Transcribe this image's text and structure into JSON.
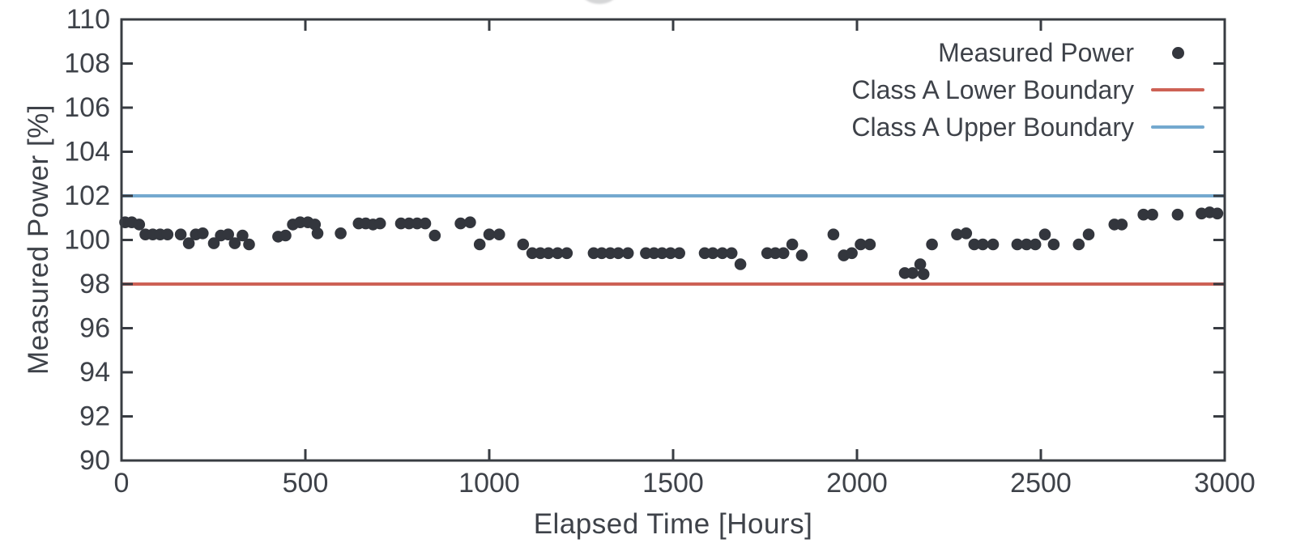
{
  "page": {
    "background": "#ffffff"
  },
  "decor": {
    "top_partial_circle": true,
    "top_partial_circle_color": "#b4b5b8"
  },
  "chart_data": {
    "type": "scatter",
    "title": "",
    "xlabel": "Elapsed Time [Hours]",
    "ylabel": "Measured Power [%]",
    "xlim": [
      0,
      3000
    ],
    "ylim": [
      90,
      110
    ],
    "x_ticks": [
      "0",
      "500",
      "1000",
      "1500",
      "2000",
      "2500",
      "3000"
    ],
    "y_ticks": [
      "90",
      "92",
      "94",
      "96",
      "98",
      "100",
      "102",
      "104",
      "106",
      "108",
      "110"
    ],
    "grid": false,
    "legend_position": "top-right",
    "colors": {
      "axis": "#383c42",
      "text": "#3e4249",
      "marker": "#33363d",
      "lower_boundary": "#cd6155",
      "upper_boundary": "#74a9cf"
    },
    "legend": [
      {
        "label": "Measured Power",
        "marker": "dot",
        "color": "#33363d"
      },
      {
        "label": "Class A Lower Boundary",
        "marker": "line",
        "color": "#cd6155"
      },
      {
        "label": "Class A Upper Boundary",
        "marker": "line",
        "color": "#74a9cf"
      }
    ],
    "series": [
      {
        "name": "Measured Power",
        "type": "scatter",
        "marker": "circle",
        "color": "#33363d",
        "points": [
          [
            10,
            100.8
          ],
          [
            28,
            100.8
          ],
          [
            48,
            100.7
          ],
          [
            65,
            100.25
          ],
          [
            85,
            100.25
          ],
          [
            105,
            100.25
          ],
          [
            125,
            100.25
          ],
          [
            161,
            100.25
          ],
          [
            183,
            99.85
          ],
          [
            202,
            100.25
          ],
          [
            221,
            100.3
          ],
          [
            251,
            99.85
          ],
          [
            270,
            100.2
          ],
          [
            290,
            100.25
          ],
          [
            308,
            99.85
          ],
          [
            329,
            100.2
          ],
          [
            347,
            99.8
          ],
          [
            426,
            100.15
          ],
          [
            446,
            100.2
          ],
          [
            466,
            100.7
          ],
          [
            486,
            100.8
          ],
          [
            507,
            100.8
          ],
          [
            526,
            100.7
          ],
          [
            533,
            100.3
          ],
          [
            596,
            100.3
          ],
          [
            645,
            100.75
          ],
          [
            664,
            100.75
          ],
          [
            684,
            100.7
          ],
          [
            703,
            100.75
          ],
          [
            760,
            100.75
          ],
          [
            782,
            100.75
          ],
          [
            804,
            100.75
          ],
          [
            826,
            100.75
          ],
          [
            852,
            100.2
          ],
          [
            922,
            100.75
          ],
          [
            948,
            100.8
          ],
          [
            974,
            99.8
          ],
          [
            1000,
            100.25
          ],
          [
            1027,
            100.25
          ],
          [
            1092,
            99.8
          ],
          [
            1117,
            99.4
          ],
          [
            1139,
            99.4
          ],
          [
            1161,
            99.4
          ],
          [
            1186,
            99.4
          ],
          [
            1211,
            99.4
          ],
          [
            1284,
            99.4
          ],
          [
            1306,
            99.4
          ],
          [
            1329,
            99.4
          ],
          [
            1351,
            99.4
          ],
          [
            1377,
            99.4
          ],
          [
            1426,
            99.4
          ],
          [
            1448,
            99.4
          ],
          [
            1470,
            99.4
          ],
          [
            1493,
            99.4
          ],
          [
            1517,
            99.4
          ],
          [
            1586,
            99.4
          ],
          [
            1608,
            99.4
          ],
          [
            1634,
            99.4
          ],
          [
            1659,
            99.4
          ],
          [
            1683,
            98.9
          ],
          [
            1756,
            99.4
          ],
          [
            1778,
            99.4
          ],
          [
            1800,
            99.4
          ],
          [
            1824,
            99.8
          ],
          [
            1850,
            99.3
          ],
          [
            1936,
            100.25
          ],
          [
            1964,
            99.3
          ],
          [
            1986,
            99.4
          ],
          [
            2010,
            99.8
          ],
          [
            2035,
            99.8
          ],
          [
            2130,
            98.5
          ],
          [
            2151,
            98.5
          ],
          [
            2172,
            98.9
          ],
          [
            2181,
            98.45
          ],
          [
            2204,
            99.8
          ],
          [
            2272,
            100.25
          ],
          [
            2297,
            100.3
          ],
          [
            2319,
            99.8
          ],
          [
            2342,
            99.8
          ],
          [
            2370,
            99.8
          ],
          [
            2436,
            99.8
          ],
          [
            2461,
            99.8
          ],
          [
            2485,
            99.8
          ],
          [
            2511,
            100.25
          ],
          [
            2535,
            99.8
          ],
          [
            2603,
            99.8
          ],
          [
            2630,
            100.25
          ],
          [
            2700,
            100.7
          ],
          [
            2720,
            100.7
          ],
          [
            2779,
            101.15
          ],
          [
            2803,
            101.15
          ],
          [
            2872,
            101.15
          ],
          [
            2937,
            101.2
          ],
          [
            2959,
            101.25
          ],
          [
            2980,
            101.2
          ]
        ]
      },
      {
        "name": "Class A Lower Boundary",
        "type": "hline",
        "y": 98,
        "color": "#cd6155"
      },
      {
        "name": "Class A Upper Boundary",
        "type": "hline",
        "y": 102,
        "color": "#74a9cf"
      }
    ]
  }
}
